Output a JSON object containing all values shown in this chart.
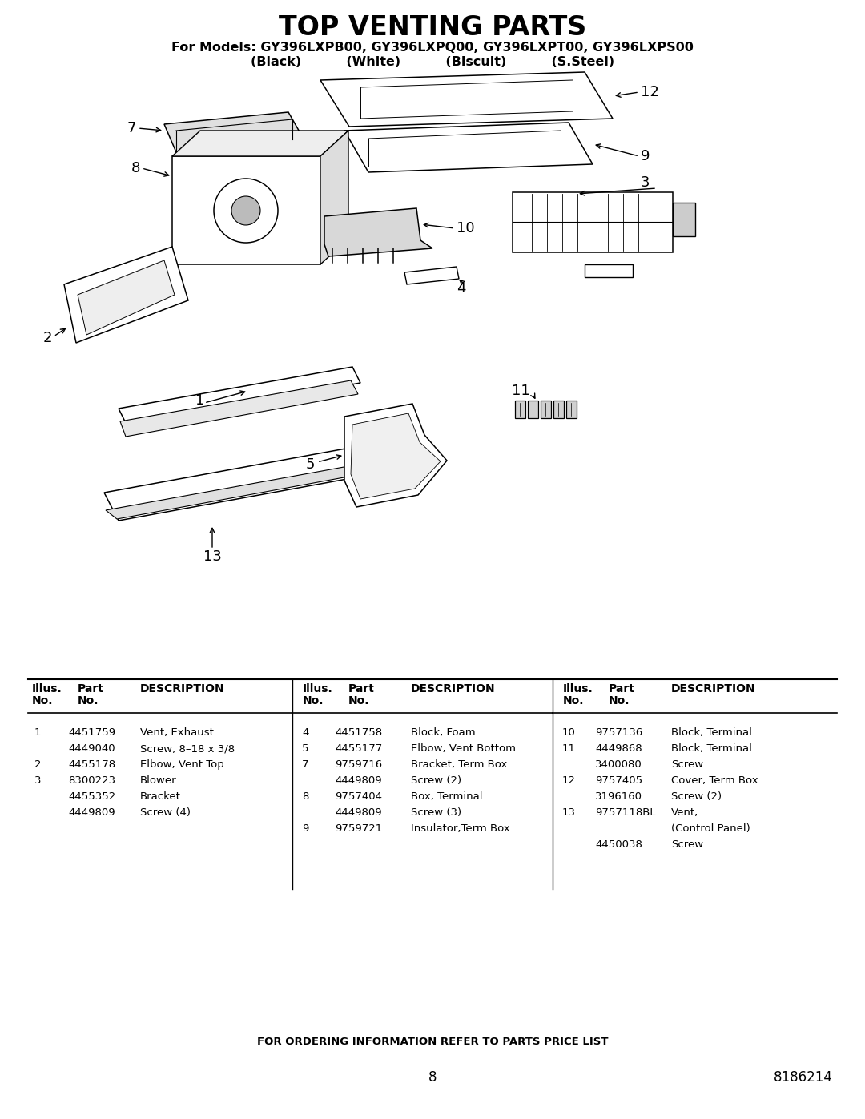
{
  "title": "TOP VENTING PARTS",
  "subtitle_line1": "For Models: GY396LXPB00, GY396LXPQ00, GY396LXPT00, GY396LXPS00",
  "subtitle_line2": "(Black)          (White)          (Biscuit)          (S.Steel)",
  "background_color": "#ffffff",
  "title_fontsize": 24,
  "subtitle_fontsize": 11.5,
  "footer_text": "FOR ORDERING INFORMATION REFER TO PARTS PRICE LIST",
  "page_number": "8",
  "doc_number": "8186214",
  "table_col1": [
    [
      "1",
      "4451759",
      "Vent, Exhaust"
    ],
    [
      "",
      "4449040",
      "Screw, 8–18 x 3/8"
    ],
    [
      "2",
      "4455178",
      "Elbow, Vent Top"
    ],
    [
      "3",
      "8300223",
      "Blower"
    ],
    [
      "",
      "4455352",
      "Bracket"
    ],
    [
      "",
      "4449809",
      "Screw (4)"
    ]
  ],
  "table_col2": [
    [
      "4",
      "4451758",
      "Block, Foam"
    ],
    [
      "5",
      "4455177",
      "Elbow, Vent Bottom"
    ],
    [
      "7",
      "9759716",
      "Bracket, Term.Box"
    ],
    [
      "",
      "4449809",
      "Screw (2)"
    ],
    [
      "8",
      "9757404",
      "Box, Terminal"
    ],
    [
      "",
      "4449809",
      "Screw (3)"
    ],
    [
      "9",
      "9759721",
      "Insulator,Term Box"
    ]
  ],
  "table_col3": [
    [
      "10",
      "9757136",
      "Block, Terminal"
    ],
    [
      "11",
      "4449868",
      "Block, Terminal"
    ],
    [
      "",
      "3400080",
      "Screw"
    ],
    [
      "12",
      "9757405",
      "Cover, Term Box"
    ],
    [
      "",
      "3196160",
      "Screw (2)"
    ],
    [
      "13",
      "9757118BL",
      "Vent,"
    ],
    [
      "",
      "",
      "(Control Panel)"
    ],
    [
      "",
      "4450038",
      "Screw"
    ]
  ]
}
